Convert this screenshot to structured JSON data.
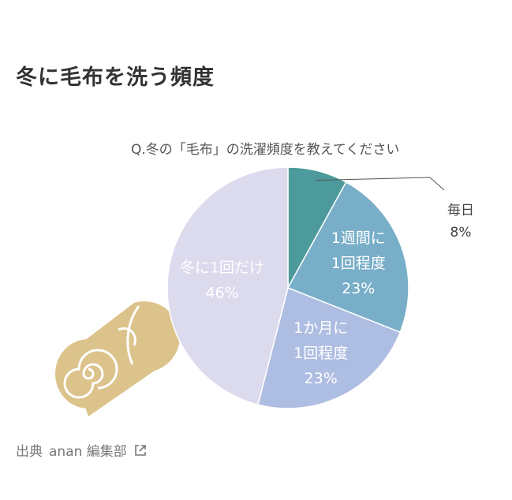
{
  "page": {
    "title": "冬に毛布を洗う頻度"
  },
  "chart_data": {
    "type": "pie",
    "title": "Q.冬の「毛布」の洗濯頻度を教えてください",
    "slices": [
      {
        "label": "毎日",
        "value": 8,
        "value_label": "8%",
        "color": "#4c9a9b"
      },
      {
        "label": "1週間に1回程度",
        "value": 23,
        "value_label": "23%",
        "color": "#78aec8"
      },
      {
        "label": "1か月に1回程度",
        "value": 23,
        "value_label": "23%",
        "color": "#aebde2"
      },
      {
        "label": "冬に1回だけ",
        "value": 46,
        "value_label": "46%",
        "color": "#dcdaed"
      }
    ]
  },
  "source": {
    "label": "出典",
    "name": "anan 編集部"
  },
  "icons": {
    "external_link": "external-link-icon",
    "illustration": "rolled-blanket-illustration"
  }
}
